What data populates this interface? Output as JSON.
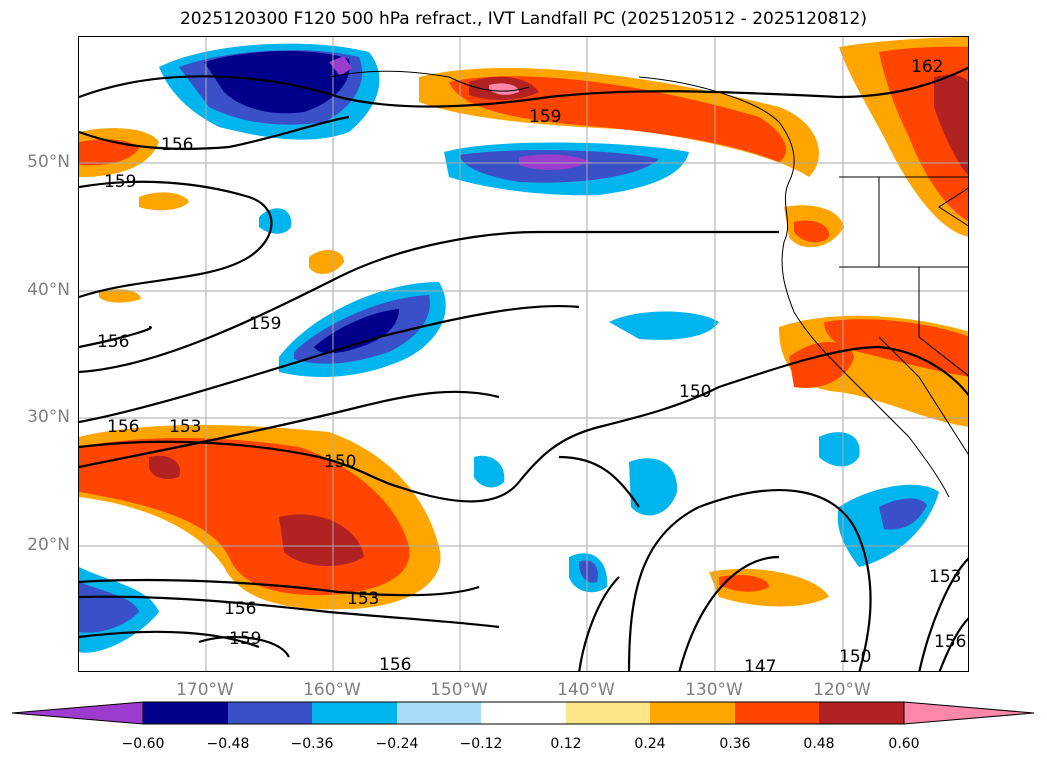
{
  "title": "2025120300 F120 500 hPa refract., IVT Landfall PC (2025120512 - 2025120812)",
  "map": {
    "lat_labels": [
      "50°N",
      "40°N",
      "30°N",
      "20°N"
    ],
    "lon_labels": [
      "170°W",
      "160°W",
      "150°W",
      "140°W",
      "130°W",
      "120°W"
    ],
    "contour_labels": [
      "156",
      "159",
      "159",
      "156",
      "159",
      "156",
      "153",
      "150",
      "150",
      "153",
      "156",
      "159",
      "156",
      "147",
      "150",
      "153",
      "156",
      "162"
    ],
    "grid_lines": true
  },
  "colorbar": {
    "ticks": [
      "−0.60",
      "−0.48",
      "−0.36",
      "−0.24",
      "−0.12",
      "0.12",
      "0.24",
      "0.36",
      "0.48",
      "0.60"
    ],
    "colors": [
      "#9c3ccf",
      "#00008b",
      "#3a50c8",
      "#00b4ee",
      "#aadcf8",
      "#ffffff",
      "#fde68a",
      "#ffa500",
      "#ff4500",
      "#b22222",
      "#ff88aa"
    ],
    "extend": "both"
  }
}
